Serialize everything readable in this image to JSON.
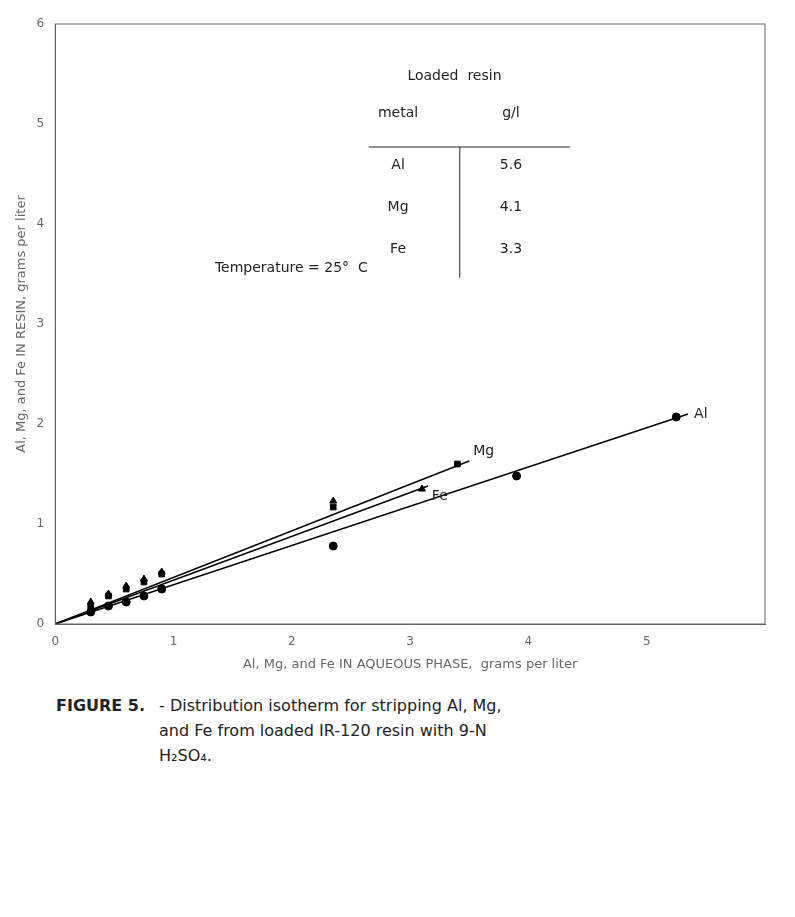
{
  "chart_data": {
    "type": "scatter",
    "xlabel": "Al, Mg, and Fe IN AQUEOUS PHASE,  grams per liter",
    "ylabel": "Al, Mg, and Fe IN RESIN, grams per liter",
    "xlim": [
      0,
      6
    ],
    "ylim": [
      0,
      6
    ],
    "xticks": [
      0,
      1,
      2,
      3,
      4,
      5
    ],
    "yticks": [
      0,
      1,
      2,
      3,
      4,
      5,
      6
    ],
    "grid": false,
    "series": [
      {
        "name": "Al",
        "color": "#000000",
        "marker": "circle",
        "x": [
          0.3,
          0.45,
          0.6,
          0.75,
          0.9,
          2.35,
          3.9,
          5.25
        ],
        "values": [
          0.12,
          0.18,
          0.22,
          0.28,
          0.35,
          0.78,
          1.48,
          2.07
        ],
        "line_x": [
          0.0,
          5.35
        ],
        "line_values": [
          0.0,
          2.1
        ]
      },
      {
        "name": "Mg",
        "color": "#000000",
        "marker": "square",
        "x": [
          0.3,
          0.45,
          0.6,
          0.75,
          0.9,
          2.35,
          3.4
        ],
        "values": [
          0.18,
          0.28,
          0.35,
          0.42,
          0.5,
          1.17,
          1.6
        ],
        "line_x": [
          0.0,
          3.5
        ],
        "line_values": [
          0.0,
          1.63
        ]
      },
      {
        "name": "Fe",
        "color": "#000000",
        "marker": "triangle",
        "x": [
          0.3,
          0.45,
          0.6,
          0.75,
          0.9,
          2.35,
          3.1
        ],
        "values": [
          0.22,
          0.3,
          0.38,
          0.45,
          0.52,
          1.23,
          1.35
        ],
        "line_x": [
          0.0,
          3.15
        ],
        "line_values": [
          0.0,
          1.38
        ]
      }
    ],
    "annotations": [
      "Temperature = 25°  C"
    ],
    "table": {
      "title": "Loaded  resin",
      "columns": [
        "metal",
        "g/l"
      ],
      "rows": [
        [
          "Al",
          5.6
        ],
        [
          "Mg",
          4.1
        ],
        [
          "Fe",
          3.3
        ]
      ]
    },
    "caption": [
      "FIGURE 5.",
      "- Distribution isotherm for stripping Al, Mg,",
      "and Fe from loaded IR-120 resin with 9-Ν",
      "H₂SO₄."
    ]
  }
}
